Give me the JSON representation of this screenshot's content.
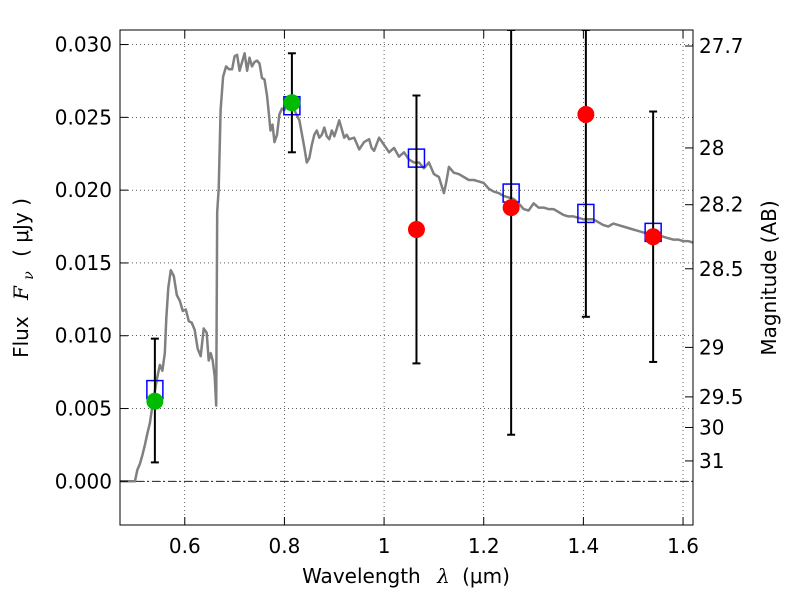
{
  "chart_data": {
    "type": "scatter",
    "xlabel": {
      "prefix": "Wavelength",
      "symbol": "λ",
      "unit": "(μm)"
    },
    "ylabel": {
      "prefix": "Flux",
      "symbol": "F",
      "subscript": "ν",
      "unit": "( μJy )"
    },
    "y2label": "Magnitude (AB)",
    "xlim": [
      0.47,
      1.62
    ],
    "ylim": [
      -0.003,
      0.031
    ],
    "grid": true,
    "x_ticks": [
      {
        "value": 0.6,
        "label": "0.6"
      },
      {
        "value": 0.8,
        "label": "0.8"
      },
      {
        "value": 1.0,
        "label": "1"
      },
      {
        "value": 1.2,
        "label": "1.2"
      },
      {
        "value": 1.4,
        "label": "1.4"
      },
      {
        "value": 1.6,
        "label": "1.6"
      }
    ],
    "y_ticks": [
      {
        "value": 0.0,
        "label": "0.000"
      },
      {
        "value": 0.005,
        "label": "0.005"
      },
      {
        "value": 0.01,
        "label": "0.010"
      },
      {
        "value": 0.015,
        "label": "0.015"
      },
      {
        "value": 0.02,
        "label": "0.020"
      },
      {
        "value": 0.025,
        "label": "0.025"
      },
      {
        "value": 0.03,
        "label": "0.030"
      }
    ],
    "y2_ticks": [
      {
        "flux": 0.0299,
        "label": "27.7"
      },
      {
        "flux": 0.0229,
        "label": "28"
      },
      {
        "flux": 0.019,
        "label": "28.2"
      },
      {
        "flux": 0.0146,
        "label": "28.5"
      },
      {
        "flux": 0.0092,
        "label": "29"
      },
      {
        "flux": 0.0058,
        "label": "29.5"
      },
      {
        "flux": 0.0037,
        "label": "30"
      },
      {
        "flux": 0.0014,
        "label": "31"
      }
    ],
    "reference_line": {
      "y": 0.0,
      "style": "dash-dot"
    },
    "series": [
      {
        "name": "model SED",
        "type": "line",
        "color": "#808080",
        "points": [
          [
            0.47,
            0.0
          ],
          [
            0.49,
            0.0
          ],
          [
            0.5,
            0.0
          ],
          [
            0.505,
            0.0008
          ],
          [
            0.51,
            0.0012
          ],
          [
            0.515,
            0.0018
          ],
          [
            0.52,
            0.0025
          ],
          [
            0.525,
            0.0033
          ],
          [
            0.53,
            0.004
          ],
          [
            0.535,
            0.0052
          ],
          [
            0.54,
            0.0062
          ],
          [
            0.545,
            0.0072
          ],
          [
            0.55,
            0.008
          ],
          [
            0.555,
            0.0076
          ],
          [
            0.56,
            0.0088
          ],
          [
            0.563,
            0.0112
          ],
          [
            0.567,
            0.0133
          ],
          [
            0.572,
            0.0145
          ],
          [
            0.578,
            0.0141
          ],
          [
            0.584,
            0.0128
          ],
          [
            0.59,
            0.0124
          ],
          [
            0.596,
            0.0117
          ],
          [
            0.602,
            0.0118
          ],
          [
            0.608,
            0.011
          ],
          [
            0.614,
            0.0109
          ],
          [
            0.62,
            0.0104
          ],
          [
            0.626,
            0.0091
          ],
          [
            0.632,
            0.0086
          ],
          [
            0.638,
            0.0105
          ],
          [
            0.644,
            0.0102
          ],
          [
            0.648,
            0.0083
          ],
          [
            0.652,
            0.0088
          ],
          [
            0.656,
            0.0083
          ],
          [
            0.66,
            0.0072
          ],
          [
            0.663,
            0.0052
          ],
          [
            0.665,
            0.0185
          ],
          [
            0.668,
            0.0201
          ],
          [
            0.672,
            0.0255
          ],
          [
            0.677,
            0.0278
          ],
          [
            0.683,
            0.0285
          ],
          [
            0.689,
            0.0283
          ],
          [
            0.695,
            0.0283
          ],
          [
            0.7,
            0.0292
          ],
          [
            0.705,
            0.0293
          ],
          [
            0.71,
            0.0282
          ],
          [
            0.715,
            0.0288
          ],
          [
            0.72,
            0.0294
          ],
          [
            0.725,
            0.0282
          ],
          [
            0.73,
            0.0291
          ],
          [
            0.735,
            0.0285
          ],
          [
            0.74,
            0.0288
          ],
          [
            0.745,
            0.0289
          ],
          [
            0.75,
            0.0287
          ],
          [
            0.755,
            0.0277
          ],
          [
            0.76,
            0.0276
          ],
          [
            0.765,
            0.0265
          ],
          [
            0.768,
            0.0255
          ],
          [
            0.772,
            0.0241
          ],
          [
            0.776,
            0.0245
          ],
          [
            0.78,
            0.0233
          ],
          [
            0.785,
            0.0238
          ],
          [
            0.79,
            0.0252
          ],
          [
            0.795,
            0.0256
          ],
          [
            0.8,
            0.0255
          ],
          [
            0.81,
            0.0262
          ],
          [
            0.82,
            0.0255
          ],
          [
            0.83,
            0.0248
          ],
          [
            0.84,
            0.0229
          ],
          [
            0.845,
            0.0219
          ],
          [
            0.85,
            0.0222
          ],
          [
            0.855,
            0.0231
          ],
          [
            0.86,
            0.0238
          ],
          [
            0.865,
            0.0241
          ],
          [
            0.87,
            0.0236
          ],
          [
            0.875,
            0.0238
          ],
          [
            0.88,
            0.0243
          ],
          [
            0.885,
            0.0237
          ],
          [
            0.89,
            0.0235
          ],
          [
            0.895,
            0.0241
          ],
          [
            0.9,
            0.0237
          ],
          [
            0.905,
            0.0242
          ],
          [
            0.91,
            0.0248
          ],
          [
            0.915,
            0.0242
          ],
          [
            0.92,
            0.0236
          ],
          [
            0.925,
            0.0238
          ],
          [
            0.93,
            0.0235
          ],
          [
            0.94,
            0.0236
          ],
          [
            0.95,
            0.0228
          ],
          [
            0.96,
            0.0233
          ],
          [
            0.97,
            0.0235
          ],
          [
            0.975,
            0.0229
          ],
          [
            0.98,
            0.0227
          ],
          [
            0.99,
            0.0236
          ],
          [
            1.0,
            0.0231
          ],
          [
            1.01,
            0.0226
          ],
          [
            1.02,
            0.0229
          ],
          [
            1.03,
            0.0223
          ],
          [
            1.04,
            0.0226
          ],
          [
            1.05,
            0.0221
          ],
          [
            1.06,
            0.0219
          ],
          [
            1.07,
            0.0219
          ],
          [
            1.08,
            0.0215
          ],
          [
            1.09,
            0.0219
          ],
          [
            1.1,
            0.0211
          ],
          [
            1.11,
            0.0209
          ],
          [
            1.12,
            0.0198
          ],
          [
            1.125,
            0.0206
          ],
          [
            1.13,
            0.0216
          ],
          [
            1.14,
            0.0212
          ],
          [
            1.15,
            0.0211
          ],
          [
            1.16,
            0.0209
          ],
          [
            1.17,
            0.0207
          ],
          [
            1.18,
            0.0207
          ],
          [
            1.19,
            0.0206
          ],
          [
            1.2,
            0.0205
          ],
          [
            1.21,
            0.0201
          ],
          [
            1.22,
            0.0199
          ],
          [
            1.23,
            0.0198
          ],
          [
            1.24,
            0.0196
          ],
          [
            1.25,
            0.0195
          ],
          [
            1.26,
            0.0194
          ],
          [
            1.27,
            0.0191
          ],
          [
            1.28,
            0.0187
          ],
          [
            1.29,
            0.0186
          ],
          [
            1.3,
            0.0191
          ],
          [
            1.31,
            0.0188
          ],
          [
            1.32,
            0.0188
          ],
          [
            1.33,
            0.0187
          ],
          [
            1.34,
            0.0187
          ],
          [
            1.35,
            0.0185
          ],
          [
            1.36,
            0.0183
          ],
          [
            1.37,
            0.0182
          ],
          [
            1.38,
            0.0182
          ],
          [
            1.39,
            0.0181
          ],
          [
            1.4,
            0.018
          ],
          [
            1.41,
            0.018
          ],
          [
            1.42,
            0.018
          ],
          [
            1.43,
            0.0178
          ],
          [
            1.44,
            0.0176
          ],
          [
            1.45,
            0.0175
          ],
          [
            1.46,
            0.0177
          ],
          [
            1.47,
            0.0176
          ],
          [
            1.48,
            0.0175
          ],
          [
            1.49,
            0.0174
          ],
          [
            1.5,
            0.0173
          ],
          [
            1.51,
            0.0172
          ],
          [
            1.52,
            0.0171
          ],
          [
            1.53,
            0.017
          ],
          [
            1.54,
            0.017
          ],
          [
            1.55,
            0.0169
          ],
          [
            1.56,
            0.0168
          ],
          [
            1.57,
            0.0167
          ],
          [
            1.58,
            0.0166
          ],
          [
            1.59,
            0.0166
          ],
          [
            1.6,
            0.0165
          ],
          [
            1.61,
            0.0165
          ],
          [
            1.62,
            0.0164
          ]
        ]
      },
      {
        "name": "model photometry",
        "type": "square",
        "color": "#0000ff",
        "points": [
          [
            0.54,
            0.0063
          ],
          [
            0.815,
            0.0258
          ],
          [
            1.065,
            0.0222
          ],
          [
            1.255,
            0.0198
          ],
          [
            1.405,
            0.0184
          ],
          [
            1.54,
            0.0171
          ]
        ]
      },
      {
        "name": "observed errorbars",
        "type": "errorbar",
        "color": "#000000",
        "points": [
          {
            "x": 0.54,
            "low": 0.0013,
            "high": 0.0098
          },
          {
            "x": 0.815,
            "low": 0.0226,
            "high": 0.0294
          },
          {
            "x": 1.065,
            "low": 0.0081,
            "high": 0.0265
          },
          {
            "x": 1.255,
            "low": 0.0032,
            "high": 0.031
          },
          {
            "x": 1.405,
            "low": 0.0113,
            "high": 0.031
          },
          {
            "x": 1.54,
            "low": 0.0082,
            "high": 0.0254
          }
        ]
      },
      {
        "name": "observed (green)",
        "type": "circle",
        "color": "#00bb00",
        "points": [
          [
            0.54,
            0.0055
          ],
          [
            0.815,
            0.026
          ]
        ]
      },
      {
        "name": "observed (red)",
        "type": "circle",
        "color": "#ff0000",
        "points": [
          [
            1.065,
            0.0173
          ],
          [
            1.255,
            0.0188
          ],
          [
            1.405,
            0.0252
          ],
          [
            1.54,
            0.0168
          ]
        ]
      }
    ]
  }
}
